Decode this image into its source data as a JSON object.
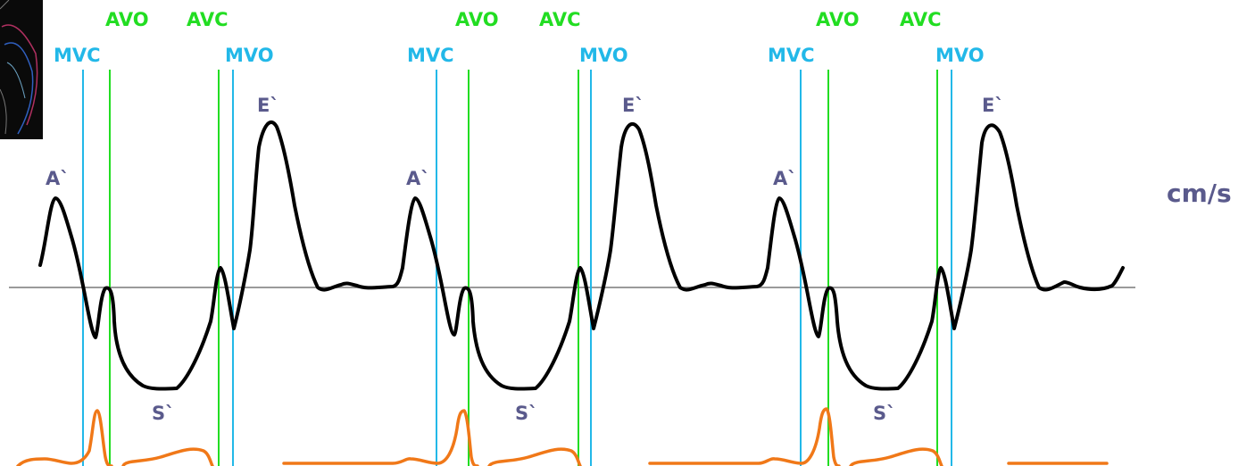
{
  "colors": {
    "valve_open_close_aortic": "#22dd22",
    "valve_open_close_mitral": "#22b8e8",
    "velocity_trace": "#000000",
    "ecg_trace": "#f07818",
    "wave_label": "#5a5a8c",
    "baseline": "#9a9a9a"
  },
  "unit_label": "cm/s",
  "cycles": [
    {
      "labels": {
        "avo": "AVO",
        "avc": "AVC",
        "mvc": "MVC",
        "mvo": "MVO",
        "a_wave": "A`",
        "s_wave": "S`",
        "e_wave": "E`"
      }
    },
    {
      "labels": {
        "avo": "AVO",
        "avc": "AVC",
        "mvc": "MVC",
        "mvo": "MVO",
        "a_wave": "A`",
        "s_wave": "S`",
        "e_wave": "E`"
      }
    },
    {
      "labels": {
        "avo": "AVO",
        "avc": "AVC",
        "mvc": "MVC",
        "mvo": "MVO",
        "a_wave": "A`",
        "s_wave": "S`",
        "e_wave": "E`"
      }
    }
  ],
  "thumbnail": {
    "icon": "echo-image-thumbnail"
  }
}
